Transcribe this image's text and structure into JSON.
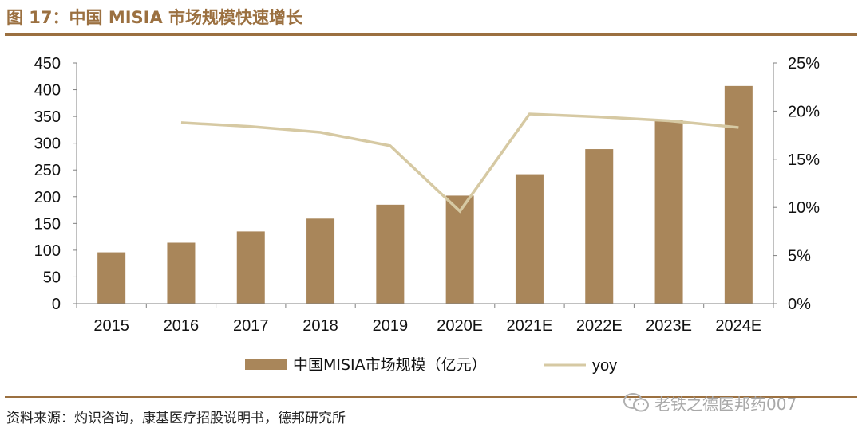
{
  "header": {
    "title": "图 17：中国 MISIA 市场规模快速增长"
  },
  "footer": {
    "source": "资料来源：灼识咨询，康基医疗招股说明书，德邦研究所",
    "watermark": "老铁之德医邦药007",
    "watermark_icon": "wechat-icon"
  },
  "colors": {
    "bar": "#a9865a",
    "line": "#d6c9a3",
    "rule": "#9b7040",
    "axis": "#808080"
  },
  "chart_data": {
    "type": "bar",
    "title": "",
    "categories": [
      "2015",
      "2016",
      "2017",
      "2018",
      "2019",
      "2020E",
      "2021E",
      "2022E",
      "2023E",
      "2024E"
    ],
    "series": [
      {
        "name": "中国MISIA市场规模（亿元）",
        "type": "bar",
        "axis": "left",
        "values": [
          96,
          114,
          135,
          159,
          185,
          202,
          242,
          289,
          344,
          407
        ]
      },
      {
        "name": "yoy",
        "type": "line",
        "axis": "right",
        "values": [
          null,
          18.8,
          18.4,
          17.8,
          16.4,
          9.6,
          19.7,
          19.4,
          19.0,
          18.3
        ]
      }
    ],
    "y_left": {
      "min": 0,
      "max": 450,
      "step": 50,
      "ticks": [
        "0",
        "50",
        "100",
        "150",
        "200",
        "250",
        "300",
        "350",
        "400",
        "450"
      ]
    },
    "y_right": {
      "min": 0,
      "max": 25,
      "step": 5,
      "ticks": [
        "0%",
        "5%",
        "10%",
        "15%",
        "20%",
        "25%"
      ]
    },
    "xlabel": "",
    "ylabel": "",
    "grid": false,
    "legend": "bottom-center"
  }
}
